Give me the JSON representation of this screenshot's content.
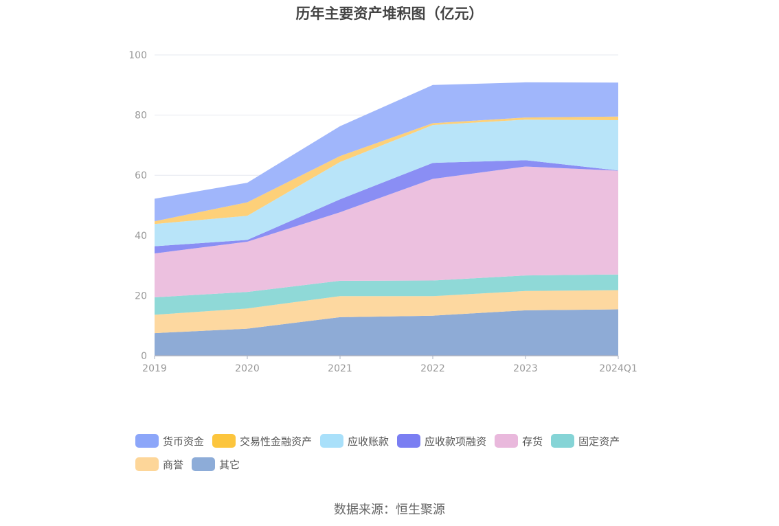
{
  "chart_data": {
    "type": "area",
    "stacked": true,
    "title": "历年主要资产堆积图（亿元）",
    "source": "数据来源：恒生聚源",
    "categories": [
      "2019",
      "2020",
      "2021",
      "2022",
      "2023",
      "2024Q1"
    ],
    "ylim": [
      0,
      100
    ],
    "yticks": [
      "0",
      "20",
      "40",
      "60",
      "80",
      "100"
    ],
    "grid": true,
    "legend_position": "bottom",
    "series": [
      {
        "name": "其它",
        "color": "#8eabd6",
        "values": [
          7.5,
          9.0,
          12.8,
          13.3,
          15.1,
          15.4
        ]
      },
      {
        "name": "商誉",
        "color": "#fdd8a0",
        "values": [
          6.1,
          6.7,
          7.0,
          6.5,
          6.4,
          6.4
        ]
      },
      {
        "name": "固定资产",
        "color": "#8fd9d7",
        "values": [
          5.8,
          5.5,
          5.1,
          5.2,
          5.2,
          5.2
        ]
      },
      {
        "name": "存货",
        "color": "#ecc0df",
        "values": [
          14.6,
          16.7,
          22.8,
          33.8,
          36.2,
          34.5
        ]
      },
      {
        "name": "应收款项融资",
        "color": "#8a8ef4",
        "values": [
          2.4,
          0.6,
          4.3,
          5.3,
          2.1,
          0.1
        ]
      },
      {
        "name": "应收账款",
        "color": "#b8e4f9",
        "values": [
          7.4,
          8.0,
          12.4,
          12.6,
          13.5,
          16.7
        ]
      },
      {
        "name": "交易性金融资产",
        "color": "#fdd079",
        "values": [
          0.9,
          4.5,
          2.0,
          0.6,
          0.7,
          1.2
        ]
      },
      {
        "name": "货币资金",
        "color": "#a0b6fb",
        "values": [
          7.5,
          6.5,
          9.9,
          12.7,
          11.7,
          11.3
        ]
      }
    ],
    "legend_order": [
      "货币资金",
      "交易性金融资产",
      "应收账款",
      "应收款项融资",
      "存货",
      "固定资产",
      "商誉",
      "其它"
    ],
    "legend_colors": {
      "货币资金": "#8ca6f9",
      "交易性金融资产": "#fcc53d",
      "应收账款": "#a9e0fa",
      "应收款项融资": "#7a7ef2",
      "存货": "#e9b8dc",
      "固定资产": "#85d4d6",
      "商誉": "#fdd699",
      "其它": "#8dacd8"
    }
  }
}
